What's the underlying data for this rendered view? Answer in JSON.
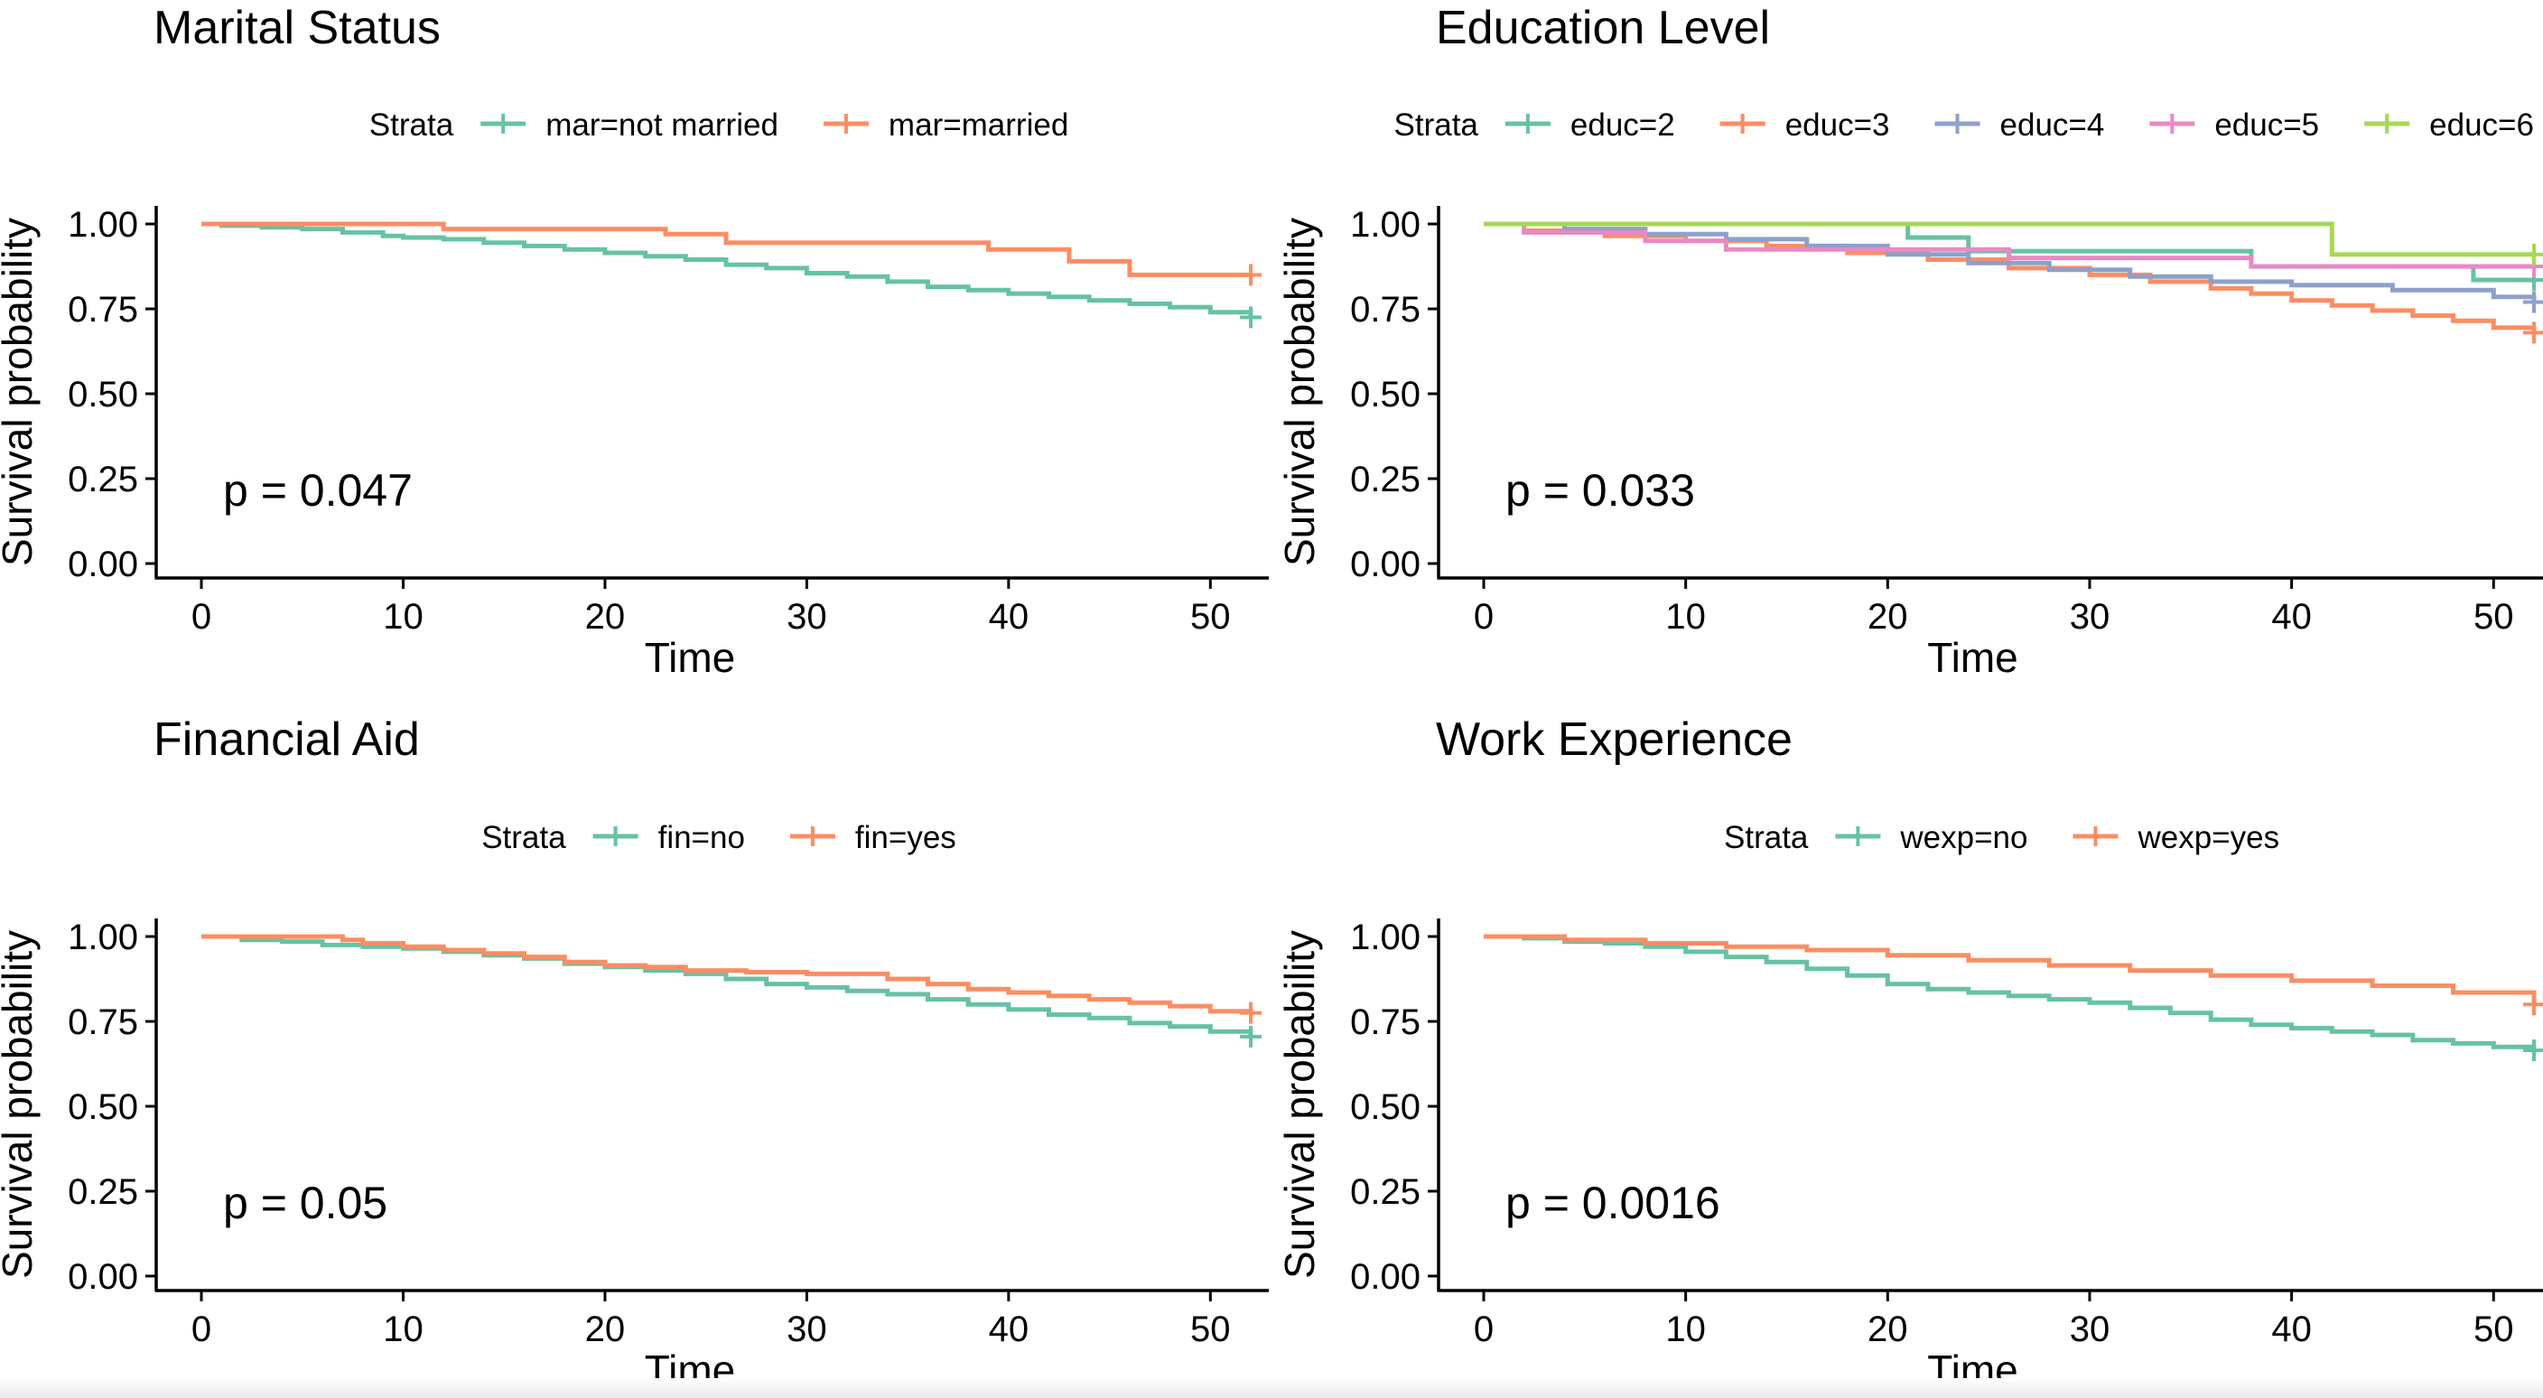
{
  "chart_data": [
    {
      "type": "line",
      "title": "Marital Status",
      "xlabel": "Time",
      "ylabel": "Survival probability",
      "xlim": [
        0,
        52
      ],
      "ylim": [
        0,
        1
      ],
      "xticks": [
        "0",
        "10",
        "20",
        "30",
        "40",
        "50"
      ],
      "yticks": [
        "0.00",
        "0.25",
        "0.50",
        "0.75",
        "1.00"
      ],
      "legend": {
        "title": "Strata",
        "position": "top"
      },
      "annotation": "p = 0.047",
      "series": [
        {
          "name": "mar=not married",
          "color": "#66c2a5",
          "x": [
            0,
            1,
            3,
            5,
            7,
            9,
            10,
            12,
            14,
            16,
            18,
            20,
            22,
            24,
            26,
            28,
            30,
            32,
            34,
            36,
            38,
            40,
            42,
            44,
            46,
            48,
            50,
            52
          ],
          "y": [
            1.0,
            0.995,
            0.99,
            0.985,
            0.975,
            0.965,
            0.96,
            0.955,
            0.945,
            0.935,
            0.925,
            0.915,
            0.905,
            0.895,
            0.88,
            0.87,
            0.855,
            0.845,
            0.83,
            0.815,
            0.805,
            0.795,
            0.785,
            0.775,
            0.765,
            0.755,
            0.74,
            0.725
          ]
        },
        {
          "name": "mar=married",
          "color": "#fc8d62",
          "x": [
            0,
            12,
            23,
            26,
            39,
            43,
            46,
            52
          ],
          "y": [
            1.0,
            0.985,
            0.97,
            0.945,
            0.925,
            0.89,
            0.85,
            0.85
          ]
        }
      ]
    },
    {
      "type": "line",
      "title": "Education Level",
      "xlabel": "Time",
      "ylabel": "Survival probability",
      "xlim": [
        0,
        52
      ],
      "ylim": [
        0,
        1
      ],
      "xticks": [
        "0",
        "10",
        "20",
        "30",
        "40",
        "50"
      ],
      "yticks": [
        "0.00",
        "0.25",
        "0.50",
        "0.75",
        "1.00"
      ],
      "legend": {
        "title": "Strata",
        "position": "top"
      },
      "annotation": "p = 0.033",
      "series": [
        {
          "name": "educ=2",
          "color": "#66c2a5",
          "x": [
            0,
            21,
            24,
            38,
            49,
            52
          ],
          "y": [
            1.0,
            0.96,
            0.92,
            0.875,
            0.835,
            0.835
          ]
        },
        {
          "name": "educ=3",
          "color": "#fc8d62",
          "x": [
            0,
            2,
            6,
            10,
            14,
            18,
            22,
            26,
            30,
            33,
            36,
            38,
            40,
            42,
            44,
            46,
            48,
            50,
            52
          ],
          "y": [
            1.0,
            0.98,
            0.965,
            0.95,
            0.935,
            0.915,
            0.895,
            0.87,
            0.85,
            0.83,
            0.81,
            0.795,
            0.775,
            0.76,
            0.745,
            0.73,
            0.715,
            0.695,
            0.68
          ]
        },
        {
          "name": "educ=4",
          "color": "#8da0cb",
          "x": [
            0,
            4,
            8,
            12,
            16,
            20,
            24,
            28,
            32,
            36,
            40,
            45,
            50,
            52
          ],
          "y": [
            1.0,
            0.985,
            0.97,
            0.955,
            0.935,
            0.91,
            0.885,
            0.865,
            0.845,
            0.83,
            0.82,
            0.805,
            0.785,
            0.77
          ]
        },
        {
          "name": "educ=5",
          "color": "#e78ac3",
          "x": [
            0,
            2,
            8,
            12,
            26,
            38,
            52
          ],
          "y": [
            1.0,
            0.975,
            0.95,
            0.925,
            0.9,
            0.875,
            0.875
          ]
        },
        {
          "name": "educ=6",
          "color": "#a6d854",
          "x": [
            0,
            42,
            52
          ],
          "y": [
            1.0,
            0.91,
            0.91
          ]
        }
      ]
    },
    {
      "type": "line",
      "title": "Financial Aid",
      "xlabel": "Time",
      "ylabel": "Survival probability",
      "xlim": [
        0,
        52
      ],
      "ylim": [
        0,
        1
      ],
      "xticks": [
        "0",
        "10",
        "20",
        "30",
        "40",
        "50"
      ],
      "yticks": [
        "0.00",
        "0.25",
        "0.50",
        "0.75",
        "1.00"
      ],
      "legend": {
        "title": "Strata",
        "position": "top"
      },
      "annotation": "p = 0.05",
      "series": [
        {
          "name": "fin=no",
          "color": "#66c2a5",
          "x": [
            0,
            2,
            4,
            6,
            8,
            10,
            12,
            14,
            16,
            18,
            20,
            22,
            24,
            26,
            28,
            30,
            32,
            34,
            36,
            38,
            40,
            42,
            44,
            46,
            48,
            50,
            52
          ],
          "y": [
            1.0,
            0.99,
            0.985,
            0.975,
            0.97,
            0.965,
            0.955,
            0.945,
            0.935,
            0.92,
            0.91,
            0.9,
            0.89,
            0.875,
            0.86,
            0.85,
            0.84,
            0.83,
            0.815,
            0.8,
            0.785,
            0.77,
            0.76,
            0.745,
            0.735,
            0.72,
            0.705
          ]
        },
        {
          "name": "fin=yes",
          "color": "#fc8d62",
          "x": [
            0,
            7,
            8,
            10,
            12,
            14,
            16,
            18,
            20,
            22,
            24,
            27,
            30,
            34,
            36,
            38,
            40,
            42,
            44,
            46,
            48,
            50,
            52
          ],
          "y": [
            1.0,
            0.99,
            0.98,
            0.97,
            0.96,
            0.95,
            0.94,
            0.925,
            0.915,
            0.91,
            0.9,
            0.895,
            0.89,
            0.875,
            0.86,
            0.845,
            0.835,
            0.825,
            0.815,
            0.805,
            0.795,
            0.78,
            0.775
          ]
        }
      ]
    },
    {
      "type": "line",
      "title": "Work Experience",
      "xlabel": "Time",
      "ylabel": "Survival probability",
      "xlim": [
        0,
        52
      ],
      "ylim": [
        0,
        1
      ],
      "xticks": [
        "0",
        "10",
        "20",
        "30",
        "40",
        "50"
      ],
      "yticks": [
        "0.00",
        "0.25",
        "0.50",
        "0.75",
        "1.00"
      ],
      "legend": {
        "title": "Strata",
        "position": "top"
      },
      "annotation": "p = 0.0016",
      "series": [
        {
          "name": "wexp=no",
          "color": "#66c2a5",
          "x": [
            0,
            2,
            4,
            6,
            8,
            10,
            12,
            14,
            16,
            18,
            20,
            22,
            24,
            26,
            28,
            30,
            32,
            34,
            36,
            38,
            40,
            42,
            44,
            46,
            48,
            50,
            52
          ],
          "y": [
            1.0,
            0.995,
            0.985,
            0.98,
            0.97,
            0.955,
            0.94,
            0.925,
            0.905,
            0.885,
            0.86,
            0.845,
            0.835,
            0.825,
            0.815,
            0.805,
            0.79,
            0.775,
            0.755,
            0.74,
            0.73,
            0.72,
            0.71,
            0.695,
            0.685,
            0.675,
            0.665
          ]
        },
        {
          "name": "wexp=yes",
          "color": "#fc8d62",
          "x": [
            0,
            4,
            8,
            12,
            16,
            20,
            24,
            28,
            32,
            36,
            40,
            44,
            48,
            52
          ],
          "y": [
            1.0,
            0.99,
            0.98,
            0.97,
            0.96,
            0.945,
            0.93,
            0.915,
            0.9,
            0.885,
            0.87,
            0.855,
            0.835,
            0.8
          ]
        }
      ]
    }
  ]
}
